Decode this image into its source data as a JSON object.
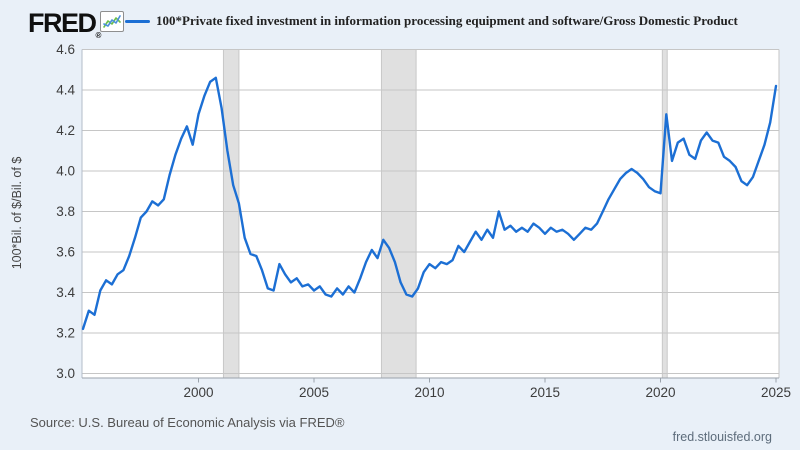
{
  "header": {
    "logo": "FRED",
    "logo_reg": "®"
  },
  "footer": {
    "source": "Source: U.S. Bureau of Economic Analysis via FRED®",
    "watermark": "fred.stlouisfed.org"
  },
  "chart_data": {
    "type": "line",
    "title": "",
    "xlabel": "",
    "ylabel": "100*Bil. of $/Bil. of $",
    "legend_position": "top",
    "grid": "horizontal",
    "xlim": [
      1994.95,
      2025.15
    ],
    "ylim": [
      3.0,
      4.6
    ],
    "x_ticks": [
      2000,
      2005,
      2010,
      2015,
      2020,
      2025
    ],
    "y_ticks": [
      3.0,
      3.2,
      3.4,
      3.6,
      3.8,
      4.0,
      4.2,
      4.4,
      4.6
    ],
    "recession_bands": [
      [
        2001.08,
        2001.75
      ],
      [
        2007.92,
        2009.42
      ],
      [
        2020.08,
        2020.29
      ]
    ],
    "colors": {
      "line": "#1c6fd4",
      "page_bg": "#e9f0f8",
      "plot_bg": "#ffffff",
      "gridline": "#c6c6c6",
      "band_fill": "#e0e0e0",
      "band_edge": "#c8c8c8",
      "axis_line": "#9aa2ab",
      "left_border": "#b3bcc9",
      "tick_text": "#3c3c3c",
      "icon_blue": "#4a90d9",
      "icon_green": "#6cbf4a"
    },
    "series": [
      {
        "name": "100*Private fixed investment in information processing equipment and software/Gross Domestic Product",
        "color": "#1c6fd4",
        "frequency": "quarterly",
        "start_year": 1995,
        "start_quarter": 1,
        "values": [
          3.22,
          3.31,
          3.29,
          3.41,
          3.46,
          3.44,
          3.49,
          3.51,
          3.58,
          3.67,
          3.77,
          3.8,
          3.85,
          3.83,
          3.86,
          3.98,
          4.08,
          4.16,
          4.22,
          4.13,
          4.28,
          4.37,
          4.44,
          4.46,
          4.31,
          4.1,
          3.93,
          3.84,
          3.67,
          3.59,
          3.58,
          3.51,
          3.42,
          3.41,
          3.54,
          3.49,
          3.45,
          3.47,
          3.43,
          3.44,
          3.41,
          3.43,
          3.39,
          3.38,
          3.42,
          3.39,
          3.43,
          3.4,
          3.47,
          3.55,
          3.61,
          3.57,
          3.66,
          3.62,
          3.55,
          3.45,
          3.39,
          3.38,
          3.42,
          3.5,
          3.54,
          3.52,
          3.55,
          3.54,
          3.56,
          3.63,
          3.6,
          3.65,
          3.7,
          3.66,
          3.71,
          3.67,
          3.8,
          3.71,
          3.73,
          3.7,
          3.72,
          3.7,
          3.74,
          3.72,
          3.69,
          3.72,
          3.7,
          3.71,
          3.69,
          3.66,
          3.69,
          3.72,
          3.71,
          3.74,
          3.8,
          3.86,
          3.91,
          3.96,
          3.99,
          4.01,
          3.99,
          3.96,
          3.92,
          3.9,
          3.89,
          4.28,
          4.05,
          4.14,
          4.16,
          4.08,
          4.06,
          4.15,
          4.19,
          4.15,
          4.14,
          4.07,
          4.05,
          4.02,
          3.95,
          3.93,
          3.97,
          4.05,
          4.13,
          4.24,
          4.42
        ]
      }
    ]
  }
}
